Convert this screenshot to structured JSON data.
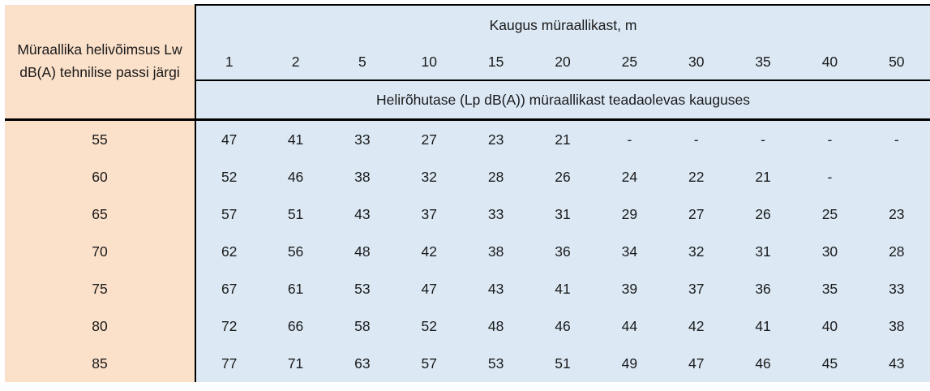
{
  "colors": {
    "left_column_bg": "#fbe0ca",
    "data_area_bg": "#dce9f5",
    "border": "#000000",
    "text": "#1a1a1a"
  },
  "table": {
    "left_header": "Müraallika helivõimsus Lw dB(A) tehnilise passi järgi",
    "top_header": "Kaugus müraallikast, m",
    "sub_header": "Helirõhutase (Lp dB(A)) müraallikast teadaolevas kauguses",
    "distances": [
      "1",
      "2",
      "5",
      "10",
      "15",
      "20",
      "25",
      "30",
      "35",
      "40",
      "50"
    ],
    "rows": [
      {
        "lw": "55",
        "values": [
          "47",
          "41",
          "33",
          "27",
          "23",
          "21",
          "-",
          "-",
          "-",
          "-",
          "-"
        ]
      },
      {
        "lw": "60",
        "values": [
          "52",
          "46",
          "38",
          "32",
          "28",
          "26",
          "24",
          "22",
          "21",
          "-",
          ""
        ]
      },
      {
        "lw": "65",
        "values": [
          "57",
          "51",
          "43",
          "37",
          "33",
          "31",
          "29",
          "27",
          "26",
          "25",
          "23"
        ]
      },
      {
        "lw": "70",
        "values": [
          "62",
          "56",
          "48",
          "42",
          "38",
          "36",
          "34",
          "32",
          "31",
          "30",
          "28"
        ]
      },
      {
        "lw": "75",
        "values": [
          "67",
          "61",
          "53",
          "47",
          "43",
          "41",
          "39",
          "37",
          "36",
          "35",
          "33"
        ]
      },
      {
        "lw": "80",
        "values": [
          "72",
          "66",
          "58",
          "52",
          "48",
          "46",
          "44",
          "42",
          "41",
          "40",
          "38"
        ]
      },
      {
        "lw": "85",
        "values": [
          "77",
          "71",
          "63",
          "57",
          "53",
          "51",
          "49",
          "47",
          "46",
          "45",
          "43"
        ]
      }
    ]
  },
  "chart_data": {
    "type": "table",
    "title": "Kaugus müraallikast, m",
    "row_header_label": "Müraallika helivõimsus Lw dB(A) tehnilise passi järgi",
    "value_label": "Helirõhutase (Lp dB(A)) müraallikast teadaolevas kauguses",
    "columns": [
      1,
      2,
      5,
      10,
      15,
      20,
      25,
      30,
      35,
      40,
      50
    ],
    "rows": [
      {
        "lw": 55,
        "values": [
          47,
          41,
          33,
          27,
          23,
          21,
          null,
          null,
          null,
          null,
          null
        ]
      },
      {
        "lw": 60,
        "values": [
          52,
          46,
          38,
          32,
          28,
          26,
          24,
          22,
          21,
          null,
          null
        ]
      },
      {
        "lw": 65,
        "values": [
          57,
          51,
          43,
          37,
          33,
          31,
          29,
          27,
          26,
          25,
          23
        ]
      },
      {
        "lw": 70,
        "values": [
          62,
          56,
          48,
          42,
          38,
          36,
          34,
          32,
          31,
          30,
          28
        ]
      },
      {
        "lw": 75,
        "values": [
          67,
          61,
          53,
          47,
          43,
          41,
          39,
          37,
          36,
          35,
          33
        ]
      },
      {
        "lw": 80,
        "values": [
          72,
          66,
          58,
          52,
          48,
          46,
          44,
          42,
          41,
          40,
          38
        ]
      },
      {
        "lw": 85,
        "values": [
          77,
          71,
          63,
          57,
          53,
          51,
          49,
          47,
          46,
          45,
          43
        ]
      }
    ]
  }
}
